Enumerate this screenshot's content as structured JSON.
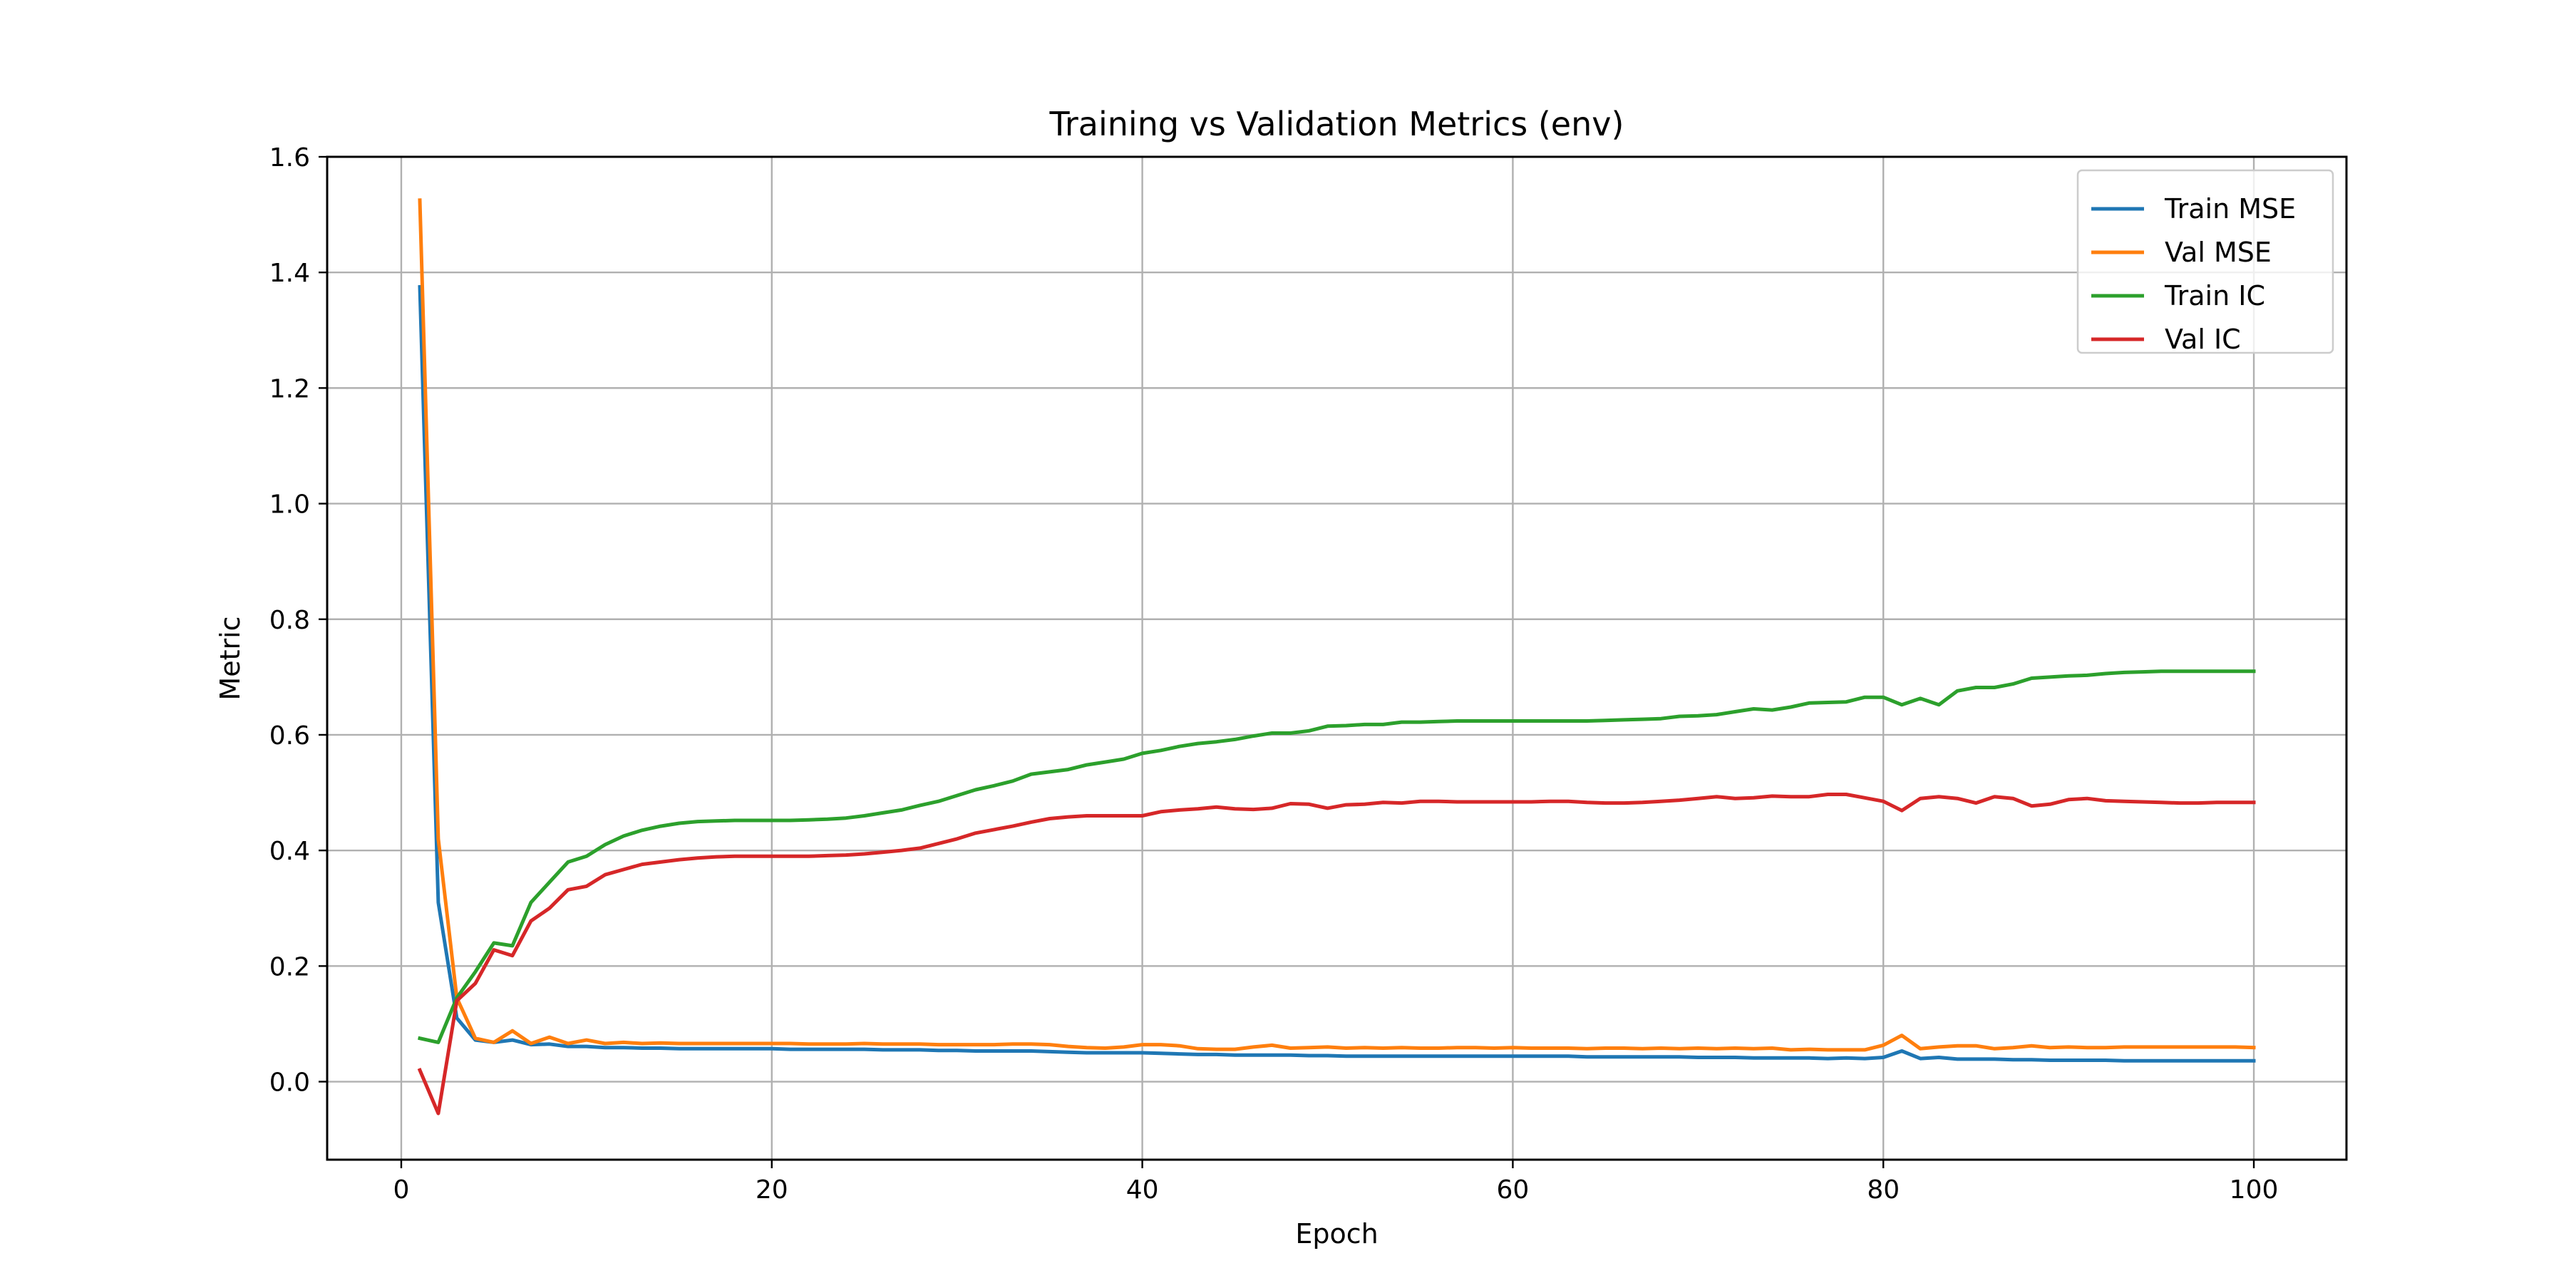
{
  "chart_data": {
    "type": "line",
    "title": "Training vs Validation Metrics (env)",
    "xlabel": "Epoch",
    "ylabel": "Metric",
    "xlim": [
      -4,
      105
    ],
    "ylim": [
      -0.135,
      1.6
    ],
    "xticks": [
      0,
      20,
      40,
      60,
      80,
      100
    ],
    "yticks": [
      0.0,
      0.2,
      0.4,
      0.6,
      0.8,
      1.0,
      1.2,
      1.4,
      1.6
    ],
    "grid": true,
    "legend_position": "top-right",
    "x": [
      1,
      2,
      3,
      4,
      5,
      6,
      7,
      8,
      9,
      10,
      11,
      12,
      13,
      14,
      15,
      16,
      17,
      18,
      19,
      20,
      21,
      22,
      23,
      24,
      25,
      26,
      27,
      28,
      29,
      30,
      31,
      32,
      33,
      34,
      35,
      36,
      37,
      38,
      39,
      40,
      41,
      42,
      43,
      44,
      45,
      46,
      47,
      48,
      49,
      50,
      51,
      52,
      53,
      54,
      55,
      56,
      57,
      58,
      59,
      60,
      61,
      62,
      63,
      64,
      65,
      66,
      67,
      68,
      69,
      70,
      71,
      72,
      73,
      74,
      75,
      76,
      77,
      78,
      79,
      80,
      81,
      82,
      83,
      84,
      85,
      86,
      87,
      88,
      89,
      90,
      91,
      92,
      93,
      94,
      95,
      96,
      97,
      98,
      99,
      100
    ],
    "series": [
      {
        "name": "Train MSE",
        "color": "#1f77b4",
        "values": [
          1.375,
          0.31,
          0.11,
          0.072,
          0.068,
          0.072,
          0.064,
          0.065,
          0.061,
          0.061,
          0.059,
          0.059,
          0.058,
          0.058,
          0.057,
          0.057,
          0.057,
          0.057,
          0.057,
          0.057,
          0.056,
          0.056,
          0.056,
          0.056,
          0.056,
          0.055,
          0.055,
          0.055,
          0.054,
          0.054,
          0.053,
          0.053,
          0.053,
          0.053,
          0.052,
          0.051,
          0.05,
          0.05,
          0.05,
          0.05,
          0.049,
          0.048,
          0.047,
          0.047,
          0.046,
          0.046,
          0.046,
          0.046,
          0.045,
          0.045,
          0.044,
          0.044,
          0.044,
          0.044,
          0.044,
          0.044,
          0.044,
          0.044,
          0.044,
          0.044,
          0.044,
          0.044,
          0.044,
          0.043,
          0.043,
          0.043,
          0.043,
          0.043,
          0.043,
          0.042,
          0.042,
          0.042,
          0.041,
          0.041,
          0.041,
          0.041,
          0.04,
          0.041,
          0.04,
          0.042,
          0.053,
          0.04,
          0.042,
          0.039,
          0.039,
          0.039,
          0.038,
          0.038,
          0.037,
          0.037,
          0.037,
          0.037,
          0.036,
          0.036,
          0.036,
          0.036,
          0.036,
          0.036,
          0.036,
          0.036
        ]
      },
      {
        "name": "Val MSE",
        "color": "#ff7f0e",
        "values": [
          1.525,
          0.42,
          0.145,
          0.075,
          0.068,
          0.088,
          0.066,
          0.077,
          0.066,
          0.072,
          0.066,
          0.068,
          0.066,
          0.067,
          0.066,
          0.066,
          0.066,
          0.066,
          0.066,
          0.066,
          0.066,
          0.065,
          0.065,
          0.065,
          0.066,
          0.065,
          0.065,
          0.065,
          0.064,
          0.064,
          0.064,
          0.064,
          0.065,
          0.065,
          0.064,
          0.061,
          0.059,
          0.058,
          0.06,
          0.064,
          0.064,
          0.062,
          0.057,
          0.056,
          0.056,
          0.06,
          0.063,
          0.058,
          0.059,
          0.06,
          0.058,
          0.059,
          0.058,
          0.059,
          0.058,
          0.058,
          0.059,
          0.059,
          0.058,
          0.059,
          0.058,
          0.058,
          0.058,
          0.057,
          0.058,
          0.058,
          0.057,
          0.058,
          0.057,
          0.058,
          0.057,
          0.058,
          0.057,
          0.058,
          0.055,
          0.056,
          0.055,
          0.055,
          0.055,
          0.063,
          0.08,
          0.057,
          0.06,
          0.062,
          0.062,
          0.057,
          0.059,
          0.062,
          0.059,
          0.06,
          0.059,
          0.059,
          0.06,
          0.06,
          0.06,
          0.06,
          0.06,
          0.06,
          0.06,
          0.059
        ]
      },
      {
        "name": "Train IC",
        "color": "#2ca02c",
        "values": [
          0.075,
          0.068,
          0.145,
          0.19,
          0.24,
          0.235,
          0.31,
          0.345,
          0.38,
          0.39,
          0.41,
          0.425,
          0.435,
          0.442,
          0.447,
          0.45,
          0.451,
          0.452,
          0.452,
          0.452,
          0.452,
          0.453,
          0.454,
          0.456,
          0.46,
          0.465,
          0.47,
          0.478,
          0.485,
          0.495,
          0.505,
          0.512,
          0.52,
          0.532,
          0.536,
          0.54,
          0.548,
          0.553,
          0.558,
          0.568,
          0.573,
          0.58,
          0.585,
          0.588,
          0.592,
          0.598,
          0.603,
          0.603,
          0.607,
          0.615,
          0.616,
          0.618,
          0.618,
          0.622,
          0.622,
          0.623,
          0.624,
          0.624,
          0.624,
          0.624,
          0.624,
          0.624,
          0.624,
          0.624,
          0.625,
          0.626,
          0.627,
          0.628,
          0.632,
          0.633,
          0.635,
          0.64,
          0.645,
          0.643,
          0.648,
          0.655,
          0.656,
          0.657,
          0.665,
          0.665,
          0.652,
          0.663,
          0.652,
          0.676,
          0.682,
          0.682,
          0.688,
          0.698,
          0.7,
          0.702,
          0.703,
          0.706,
          0.708,
          0.709,
          0.71,
          0.71,
          0.71,
          0.71,
          0.71,
          0.71
        ]
      },
      {
        "name": "Val IC",
        "color": "#d62728",
        "values": [
          0.02,
          -0.055,
          0.14,
          0.17,
          0.228,
          0.218,
          0.278,
          0.3,
          0.332,
          0.338,
          0.358,
          0.367,
          0.376,
          0.38,
          0.384,
          0.387,
          0.389,
          0.39,
          0.39,
          0.39,
          0.39,
          0.39,
          0.391,
          0.392,
          0.394,
          0.397,
          0.4,
          0.404,
          0.412,
          0.42,
          0.43,
          0.436,
          0.442,
          0.449,
          0.455,
          0.458,
          0.46,
          0.46,
          0.46,
          0.46,
          0.467,
          0.47,
          0.472,
          0.475,
          0.472,
          0.471,
          0.473,
          0.481,
          0.48,
          0.473,
          0.479,
          0.48,
          0.483,
          0.482,
          0.485,
          0.485,
          0.484,
          0.484,
          0.484,
          0.484,
          0.484,
          0.485,
          0.485,
          0.483,
          0.482,
          0.482,
          0.483,
          0.485,
          0.487,
          0.49,
          0.493,
          0.49,
          0.491,
          0.494,
          0.493,
          0.493,
          0.497,
          0.497,
          0.491,
          0.485,
          0.469,
          0.49,
          0.493,
          0.49,
          0.482,
          0.493,
          0.49,
          0.477,
          0.48,
          0.488,
          0.49,
          0.486,
          0.485,
          0.484,
          0.483,
          0.482,
          0.482,
          0.483,
          0.483,
          0.483
        ]
      }
    ]
  }
}
